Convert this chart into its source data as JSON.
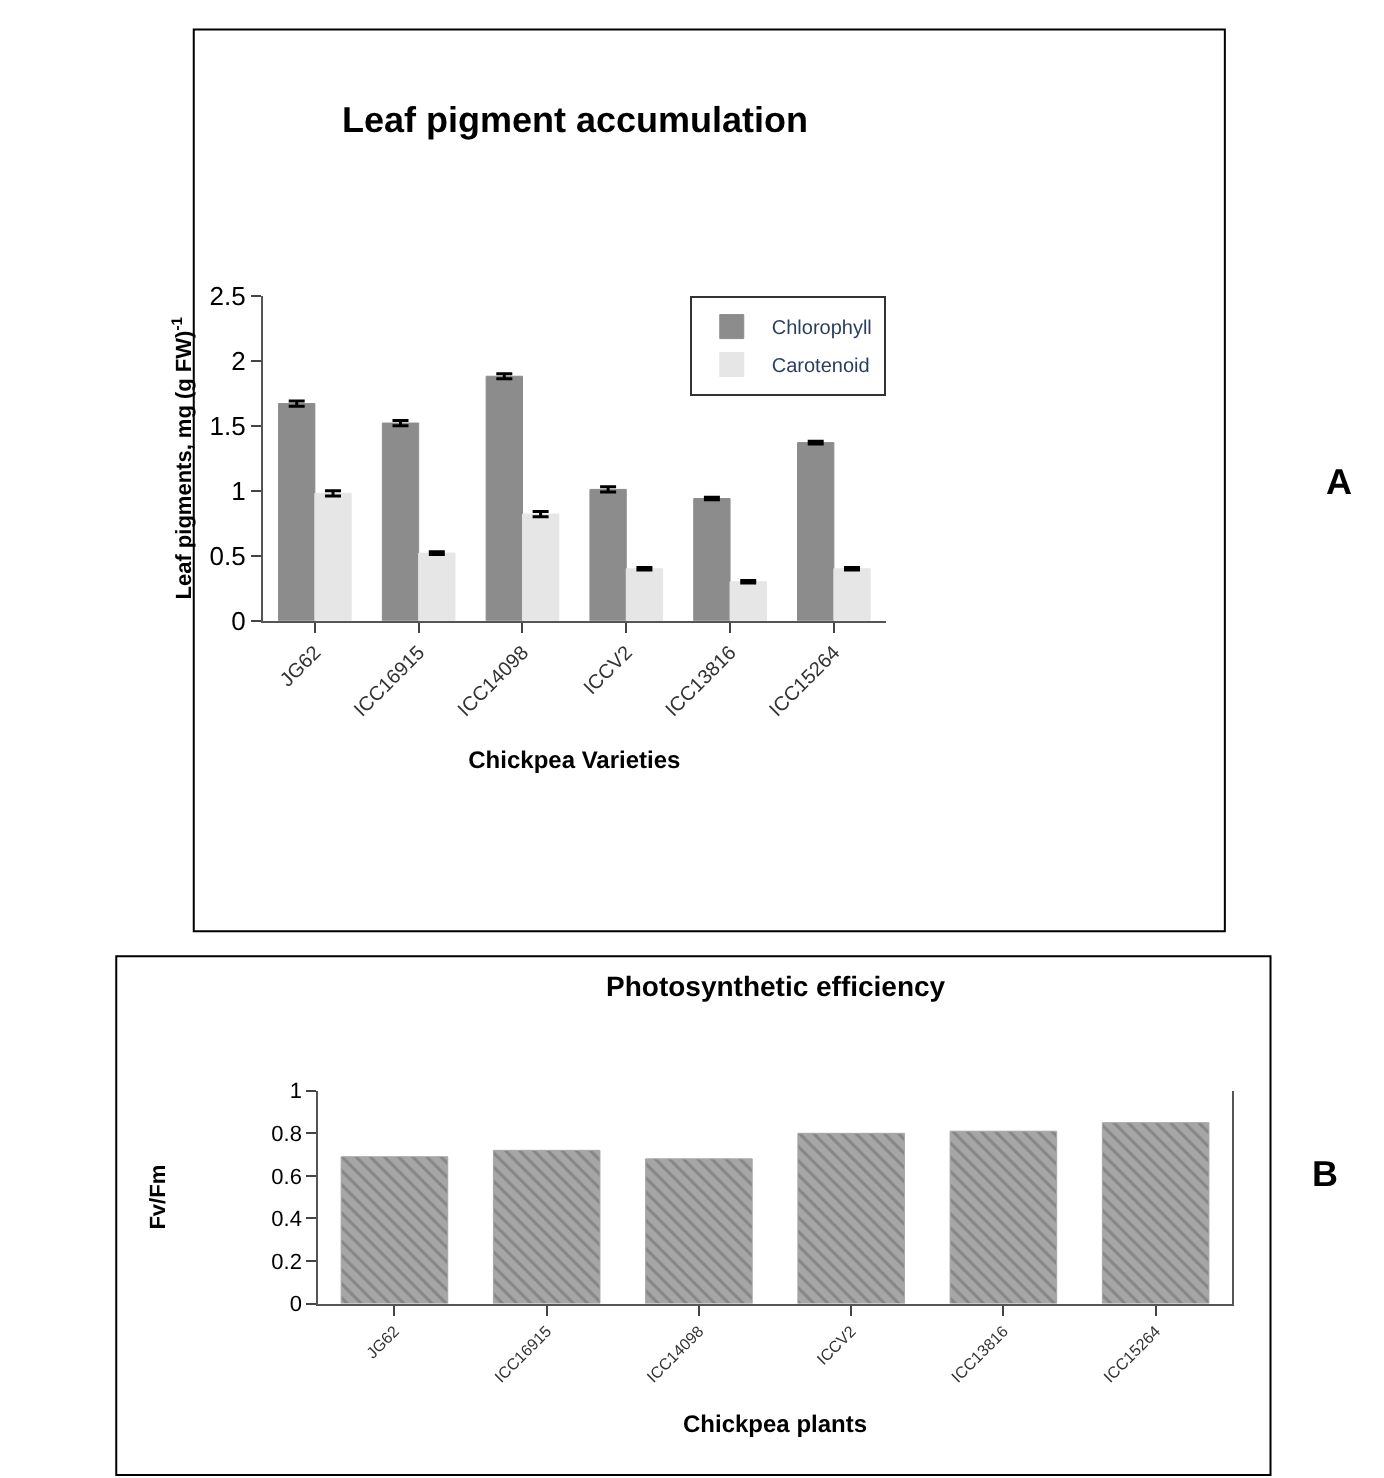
{
  "chart_data": [
    {
      "type": "bar",
      "title": "Leaf pigment accumulation",
      "xlabel": "Chickpea Varieties",
      "ylabel": "Leaf pigments, mg (g FW)$^{-1}$",
      "categories": [
        "JG62",
        "ICC16915",
        "ICC14098",
        "ICCV2",
        "ICC13816",
        "ICC15264"
      ],
      "series": [
        {
          "name": "Chlorophyll",
          "color": "#8c8c8c",
          "values": [
            1.67,
            1.52,
            1.88,
            1.01,
            0.94,
            1.37
          ],
          "errors": [
            0.02,
            0.02,
            0.02,
            0.02,
            0.01,
            0.01
          ]
        },
        {
          "name": "Carotenoid",
          "color": "#e6e6e6",
          "values": [
            0.98,
            0.52,
            0.82,
            0.4,
            0.3,
            0.4
          ],
          "errors": [
            0.02,
            0.01,
            0.02,
            0.01,
            0.01,
            0.01
          ]
        }
      ],
      "ylim": [
        0,
        2.5
      ],
      "yticks": [
        0,
        0.5,
        1,
        1.5,
        2,
        2.5
      ],
      "legend": "top right",
      "grid": false,
      "annotations": [
        "A"
      ]
    },
    {
      "type": "bar",
      "title": "Photosynthetic efficiency",
      "xlabel": "Chickpea plants",
      "ylabel": "Fv/Fm",
      "categories": [
        "JG62",
        "ICC16915",
        "ICC14098",
        "ICCV2",
        "ICC13816",
        "ICC15264"
      ],
      "series": [
        {
          "color": "#a6a6a6",
          "values": [
            0.69,
            0.72,
            0.68,
            0.8,
            0.81,
            0.85
          ]
        }
      ],
      "ylim": [
        0,
        1
      ],
      "yticks": [
        0,
        0.2,
        0.4,
        0.6,
        0.8,
        1
      ],
      "legend": false,
      "grid": false,
      "annotations": [
        "B"
      ]
    }
  ]
}
